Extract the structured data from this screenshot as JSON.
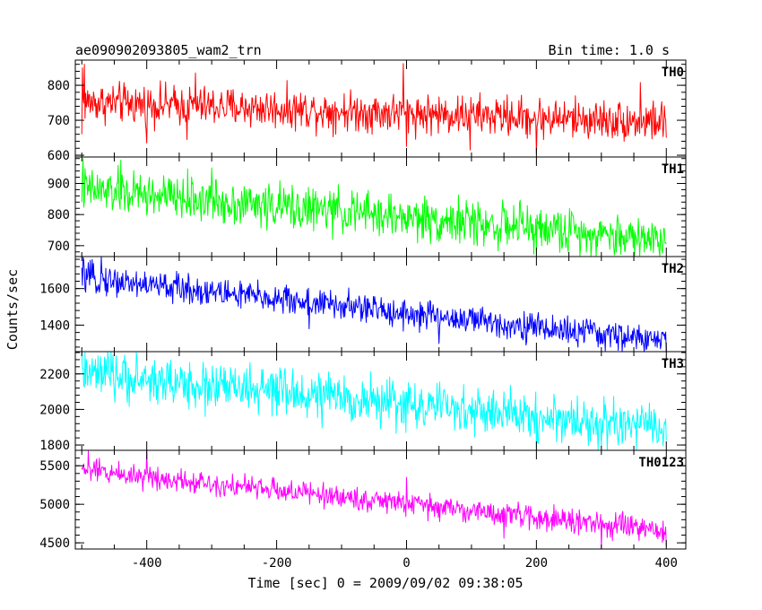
{
  "chart_data": {
    "type": "line",
    "title_left": "ae090902093805_wam2_trn",
    "title_right": "Bin time: 1.0 s",
    "xlabel": "Time [sec] 0 = 2009/09/02 09:38:05",
    "ylabel": "Counts/sec",
    "xlim": [
      -510,
      430
    ],
    "xticks": [
      -400,
      -200,
      0,
      200,
      400
    ],
    "x_range_data": [
      -500,
      400
    ],
    "grid": false,
    "series": [
      {
        "name": "TH0",
        "color": "#ff0000",
        "ylim": [
          595,
          872
        ],
        "yticks": [
          600,
          700,
          800
        ],
        "trend_start": 752,
        "trend_end": 695,
        "noise": 28,
        "points": [
          {
            "x": -500,
            "y": 660
          },
          {
            "x": -499,
            "y": 850
          },
          {
            "x": -496,
            "y": 860
          },
          {
            "x": -400,
            "y": 635
          },
          {
            "x": -338,
            "y": 645
          },
          {
            "x": -325,
            "y": 835
          },
          {
            "x": -5,
            "y": 862
          },
          {
            "x": 0,
            "y": 625
          },
          {
            "x": 98,
            "y": 615
          },
          {
            "x": 200,
            "y": 602
          },
          {
            "x": 360,
            "y": 808
          },
          {
            "x": 400,
            "y": 650
          }
        ]
      },
      {
        "name": "TH1",
        "color": "#00ff00",
        "ylim": [
          665,
          985
        ],
        "yticks": [
          700,
          800,
          900
        ],
        "trend_start": 880,
        "trend_end": 720,
        "noise": 35,
        "points": [
          {
            "x": -498,
            "y": 980
          },
          {
            "x": -440,
            "y": 975
          },
          {
            "x": -300,
            "y": 950
          },
          {
            "x": 200,
            "y": 672
          },
          {
            "x": 320,
            "y": 670
          },
          {
            "x": 380,
            "y": 678
          }
        ]
      },
      {
        "name": "TH2",
        "color": "#0000ff",
        "ylim": [
          1255,
          1775
        ],
        "yticks": [
          1400,
          1600
        ],
        "trend_start": 1660,
        "trend_end": 1310,
        "noise": 40,
        "points": [
          {
            "x": -498,
            "y": 1770
          },
          {
            "x": -470,
            "y": 1775
          },
          {
            "x": -150,
            "y": 1380
          },
          {
            "x": 20,
            "y": 1360
          },
          {
            "x": 50,
            "y": 1300
          },
          {
            "x": 400,
            "y": 1255
          }
        ]
      },
      {
        "name": "TH3",
        "color": "#00ffff",
        "ylim": [
          1770,
          2325
        ],
        "yticks": [
          1800,
          2000,
          2200
        ],
        "trend_start": 2200,
        "trend_end": 1890,
        "noise": 65,
        "points": [
          {
            "x": -495,
            "y": 2320
          },
          {
            "x": -460,
            "y": 2325
          },
          {
            "x": -310,
            "y": 1960
          },
          {
            "x": 105,
            "y": 1845
          },
          {
            "x": 200,
            "y": 1775
          },
          {
            "x": 300,
            "y": 1790
          }
        ]
      },
      {
        "name": "TH0123",
        "color": "#ff00ff",
        "ylim": [
          4420,
          5700
        ],
        "yticks": [
          4500,
          5000,
          5500
        ],
        "trend_start": 5450,
        "trend_end": 4650,
        "noise": 75,
        "points": [
          {
            "x": -490,
            "y": 5690
          },
          {
            "x": -400,
            "y": 5700
          },
          {
            "x": 0,
            "y": 5350
          },
          {
            "x": 150,
            "y": 4560
          },
          {
            "x": 300,
            "y": 4430
          },
          {
            "x": 400,
            "y": 4450
          }
        ]
      }
    ]
  }
}
